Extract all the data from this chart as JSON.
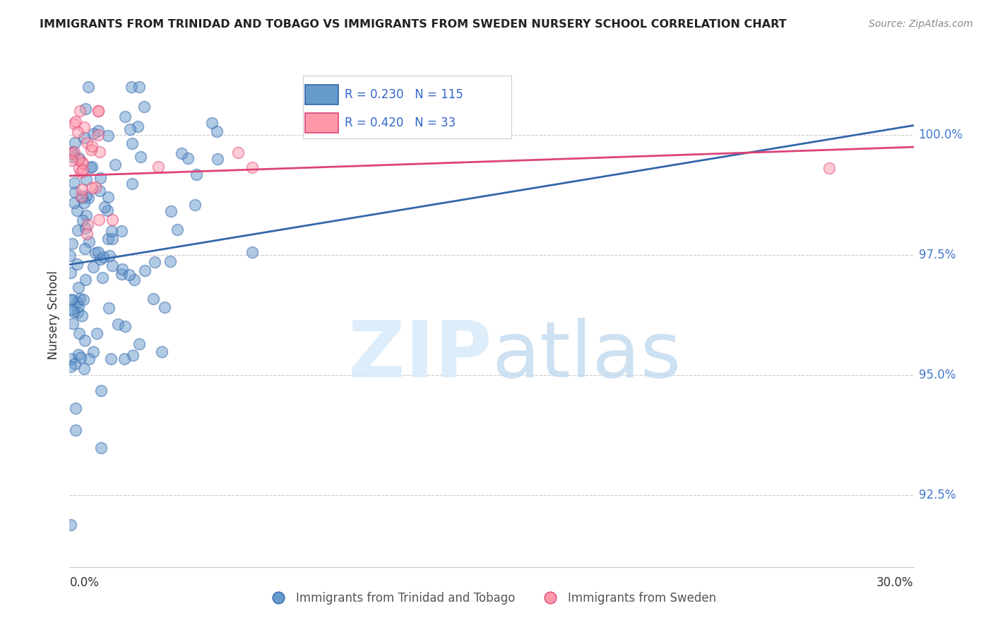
{
  "title": "IMMIGRANTS FROM TRINIDAD AND TOBAGO VS IMMIGRANTS FROM SWEDEN NURSERY SCHOOL CORRELATION CHART",
  "source": "Source: ZipAtlas.com",
  "ylabel": "Nursery School",
  "ytick_values": [
    92.5,
    95.0,
    97.5,
    100.0
  ],
  "xmin": 0.0,
  "xmax": 30.0,
  "ymin": 91.0,
  "ymax": 101.5,
  "blue_R": 0.23,
  "blue_N": 115,
  "pink_R": 0.42,
  "pink_N": 33,
  "blue_color": "#6699CC",
  "pink_color": "#FF99AA",
  "blue_line_color": "#3366AA",
  "pink_line_color": "#DD4477",
  "legend_label1": "Immigrants from Trinidad and Tobago",
  "legend_label2": "Immigrants from Sweden",
  "blue_trend_y0": 97.3,
  "blue_trend_y1": 100.2,
  "pink_trend_y0": 99.15,
  "pink_trend_y1": 99.75
}
